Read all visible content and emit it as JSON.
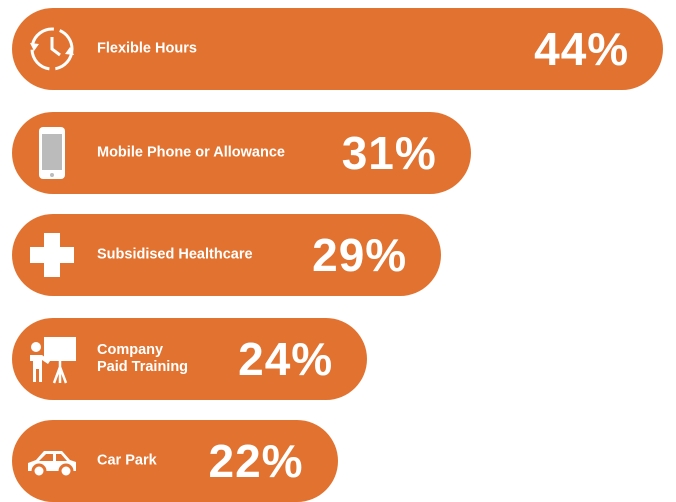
{
  "chart_data": {
    "type": "bar",
    "orientation": "horizontal",
    "color": "#e2722f",
    "categories": [
      "Flexible Hours",
      "Mobile Phone or Allowance",
      "Subsidised Healthcare",
      "Company\nPaid Training",
      "Car Park"
    ],
    "values": [
      44,
      31,
      29,
      24,
      22
    ],
    "value_labels": [
      "44%",
      "31%",
      "29%",
      "24%",
      "22%"
    ]
  }
}
